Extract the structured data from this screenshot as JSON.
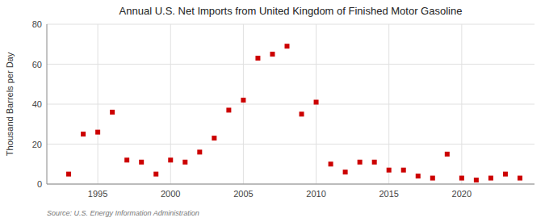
{
  "chart_data": {
    "type": "scatter",
    "title": "Annual U.S. Net Imports from United Kingdom of Finished Motor Gasoline",
    "ylabel": "Thousand Barrels per Day",
    "annotations": [
      "Source: U.S. Energy Information Administration"
    ],
    "color": "#cc0000",
    "marker": "square",
    "grid": true,
    "xlim": [
      1991.5,
      2025.0
    ],
    "xticks": [
      1995,
      2000,
      2005,
      2010,
      2015,
      2020
    ],
    "ylim": [
      0,
      80
    ],
    "yticks": [
      0,
      20,
      40,
      60,
      80
    ],
    "x": [
      1993,
      1994,
      1995,
      1996,
      1997,
      1998,
      1999,
      2000,
      2001,
      2002,
      2003,
      2004,
      2005,
      2006,
      2007,
      2008,
      2009,
      2010,
      2011,
      2012,
      2013,
      2014,
      2015,
      2016,
      2017,
      2018,
      2019,
      2020,
      2021,
      2022,
      2023,
      2024
    ],
    "values": [
      5,
      25,
      26,
      36,
      12,
      11,
      5,
      12,
      11,
      16,
      23,
      37,
      42,
      63,
      65,
      69,
      35,
      41,
      10,
      6,
      11,
      11,
      7,
      7,
      4,
      3,
      15,
      3,
      2,
      3,
      5,
      3
    ]
  }
}
